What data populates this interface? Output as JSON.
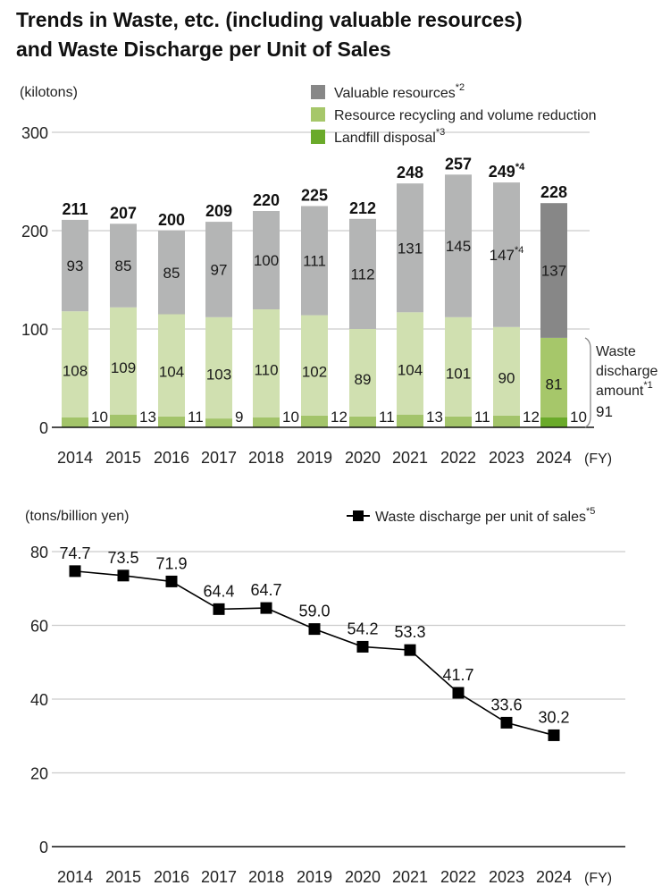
{
  "title_line1": "Trends in Waste, etc. (including valuable resources)",
  "title_line2": "and Waste Discharge per Unit of Sales",
  "chart_data": [
    {
      "type": "bar",
      "stacked": true,
      "title": "Trends in Waste, etc. (including valuable resources)",
      "ylabel": "(kilotons)",
      "xlabel": "(FY)",
      "ylim": [
        0,
        300
      ],
      "yticks": [
        0,
        100,
        200,
        300
      ],
      "grid": true,
      "legend_position": "top-right",
      "categories": [
        "2014",
        "2015",
        "2016",
        "2017",
        "2018",
        "2019",
        "2020",
        "2021",
        "2022",
        "2023",
        "2024"
      ],
      "series": [
        {
          "name": "Landfill disposal",
          "note": "*3",
          "color": "#a3c46a",
          "highlight_color": "#6aaa2a",
          "values": [
            10,
            13,
            11,
            9,
            10,
            12,
            11,
            13,
            11,
            12,
            10
          ]
        },
        {
          "name": "Resource recycling and volume reduction",
          "note": "",
          "color": "#d0e0b0",
          "highlight_color": "#a6c76a",
          "values": [
            108,
            109,
            104,
            103,
            110,
            102,
            89,
            104,
            101,
            90,
            81
          ]
        },
        {
          "name": "Valuable resources",
          "note": "*2",
          "color": "#b4b5b5",
          "highlight_color": "#878787",
          "values": [
            93,
            85,
            85,
            97,
            100,
            111,
            112,
            131,
            145,
            147,
            137
          ]
        }
      ],
      "totals": [
        211,
        207,
        200,
        209,
        220,
        225,
        212,
        248,
        257,
        249,
        228
      ],
      "label_notes": {
        "total_2023": "*4",
        "valuable_2023": "*4"
      },
      "legend": [
        {
          "label": "Valuable resources",
          "sup": "*2",
          "color": "#878787"
        },
        {
          "label": "Resource recycling and volume reduction",
          "sup": "",
          "color": "#a6c76a"
        },
        {
          "label": "Landfill disposal",
          "sup": "*3",
          "color": "#6aaa2a"
        }
      ],
      "annotation": {
        "lines": [
          "Waste",
          "discharge",
          "amount"
        ],
        "sup": "*1",
        "value": "91"
      }
    },
    {
      "type": "line",
      "title": "Waste Discharge per Unit of Sales",
      "ylabel": "(tons/billion yen)",
      "xlabel": "(FY)",
      "ylim": [
        0,
        80
      ],
      "yticks": [
        0,
        20,
        40,
        60,
        80
      ],
      "grid": true,
      "legend_position": "top-right",
      "categories": [
        "2014",
        "2015",
        "2016",
        "2017",
        "2018",
        "2019",
        "2020",
        "2021",
        "2022",
        "2023",
        "2024"
      ],
      "series": [
        {
          "name": "Waste discharge per unit of sales",
          "sup": "*5",
          "color": "#000000",
          "values": [
            74.7,
            73.5,
            71.9,
            64.4,
            64.7,
            59.0,
            54.2,
            53.3,
            41.7,
            33.6,
            30.2
          ]
        }
      ]
    }
  ]
}
